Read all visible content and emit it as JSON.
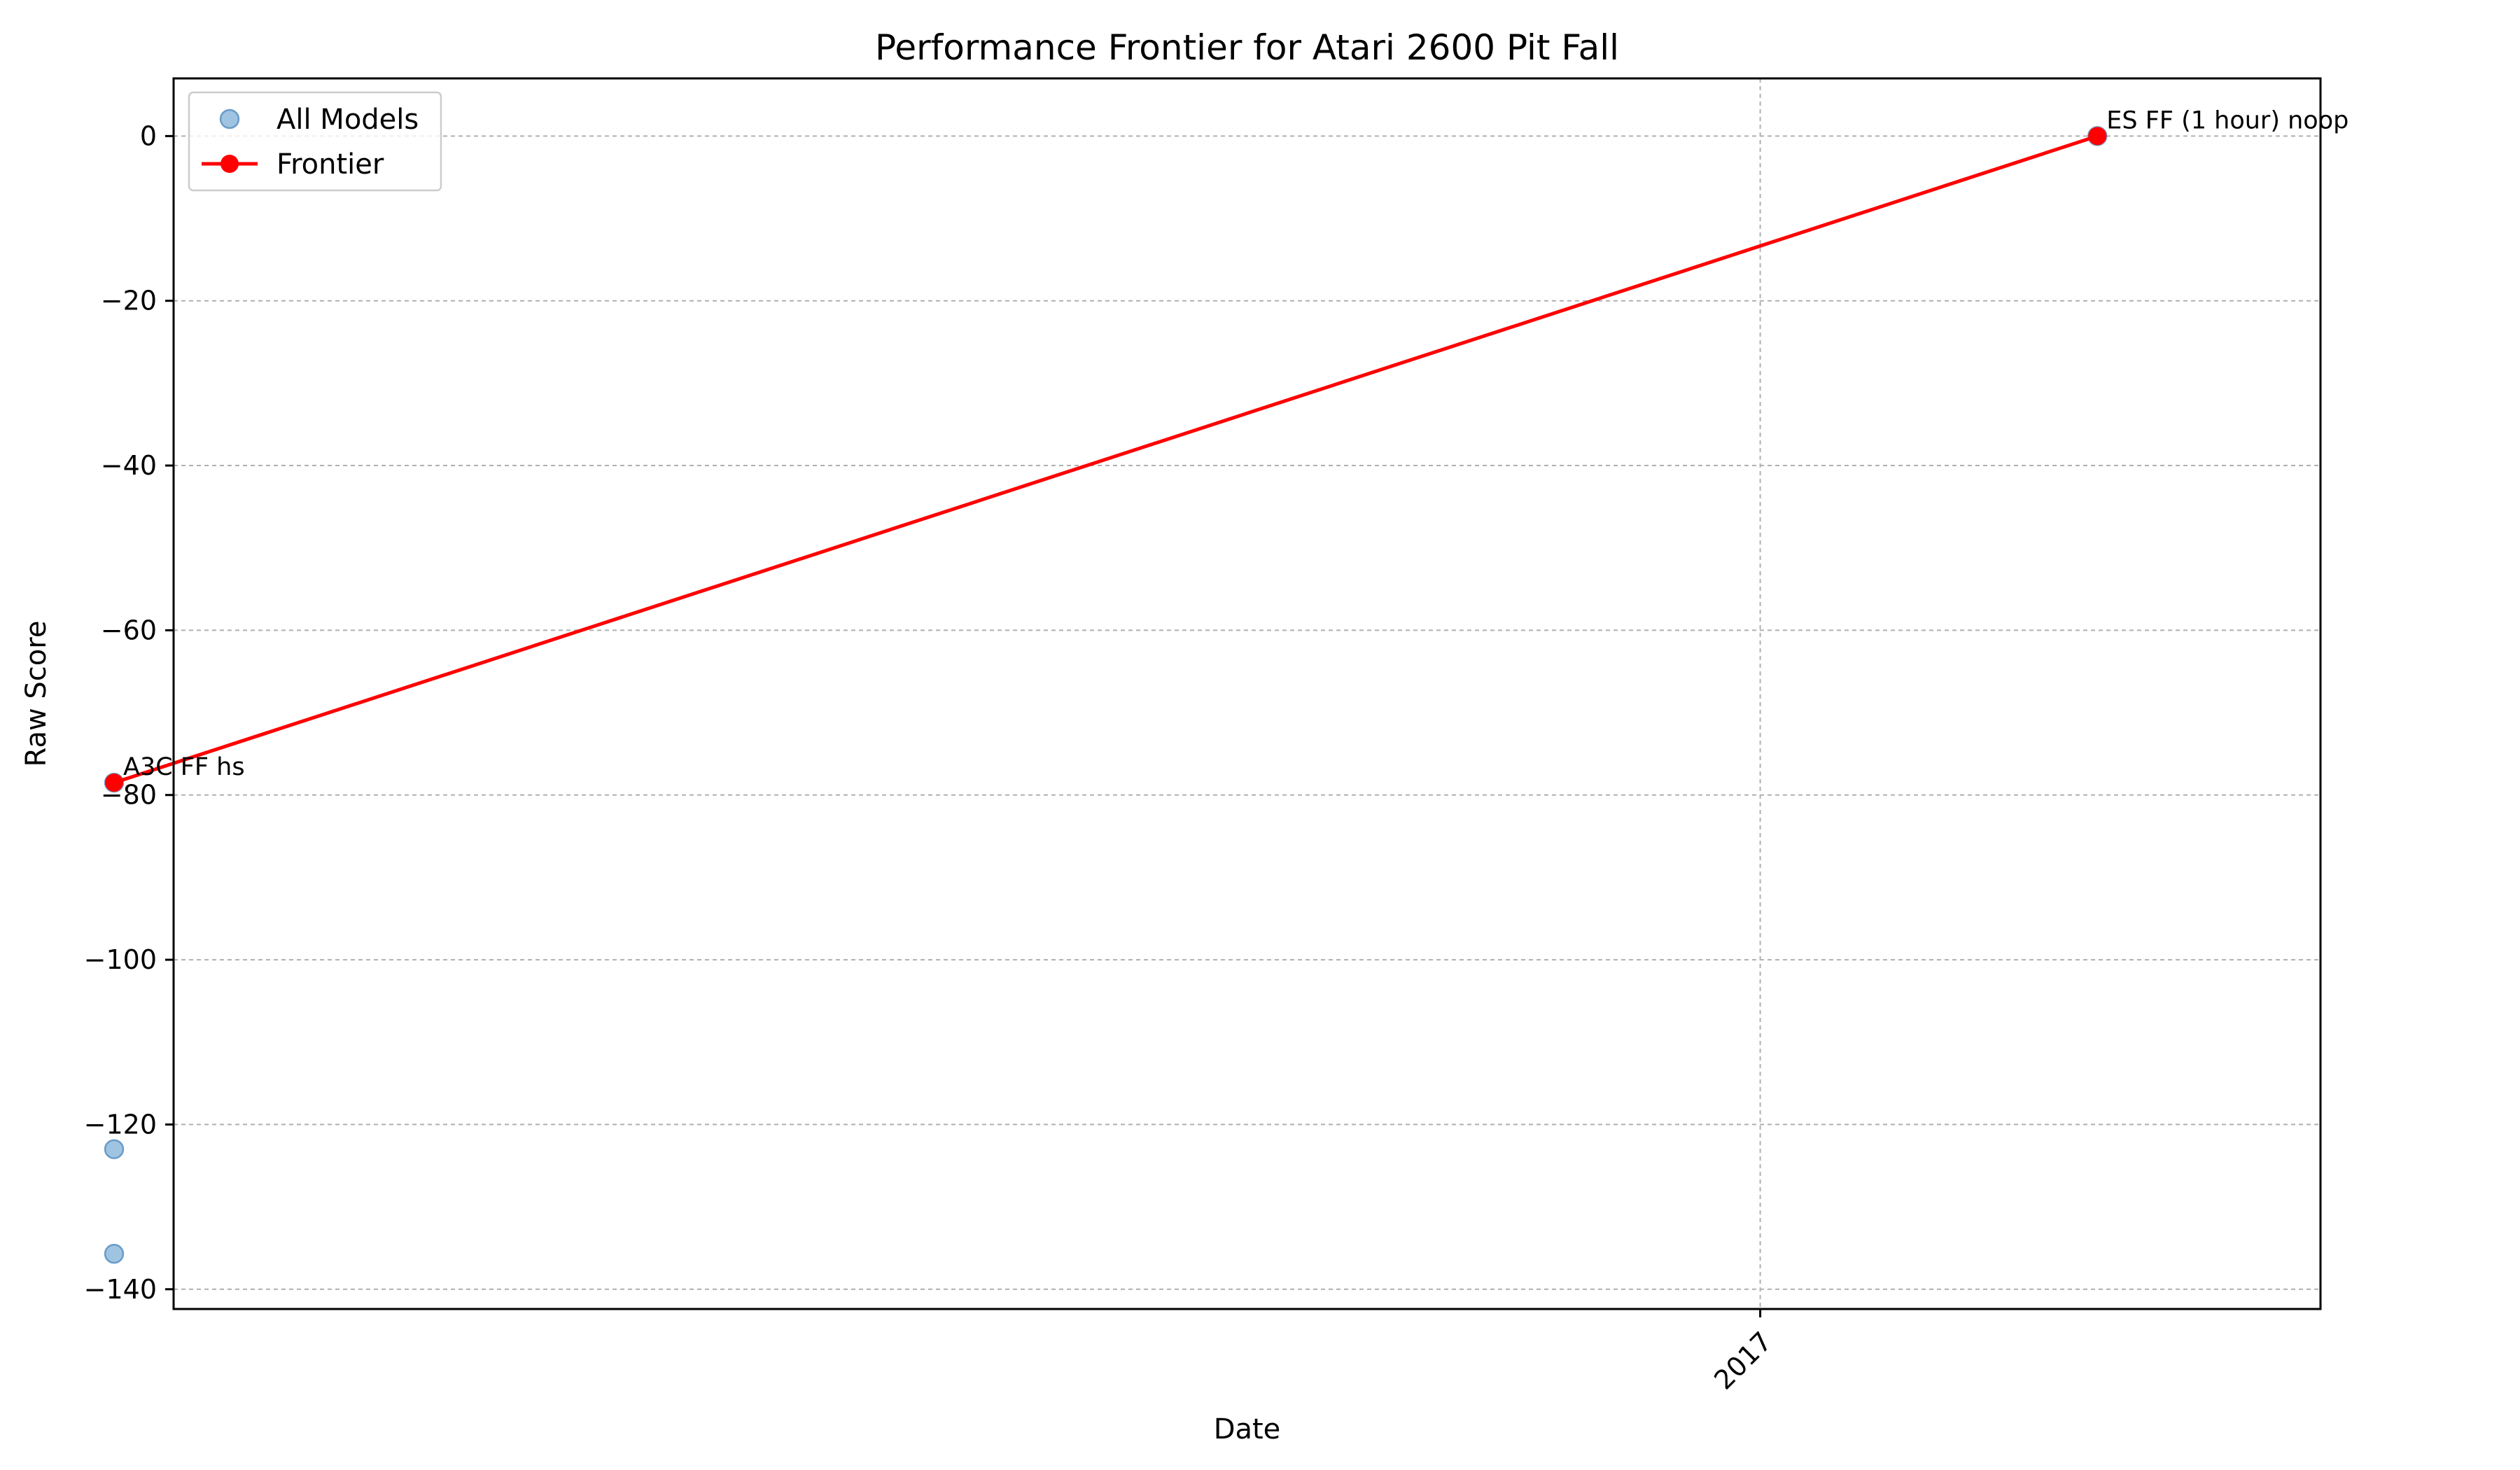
{
  "chart_data": {
    "type": "scatter",
    "title": "Performance Frontier for Atari 2600 Pit Fall",
    "xlabel": "Date",
    "ylabel": "Raw Score",
    "xlim": [
      "2016-02-16",
      "2017-04-24"
    ],
    "ylim": [
      -142.4,
      7.0
    ],
    "x_ticks": [
      {
        "value": "2017-01-01",
        "label": "2017"
      }
    ],
    "y_ticks": [
      0,
      -20,
      -40,
      -60,
      -80,
      -100,
      -120,
      -140
    ],
    "y_tick_labels": [
      "0",
      "−20",
      "−40",
      "−60",
      "−80",
      "−100",
      "−120",
      "−140"
    ],
    "grid": true,
    "legend_position": "top-left",
    "series": [
      {
        "name": "All Models",
        "kind": "scatter",
        "color": "#7fb0d8",
        "points": [
          {
            "x": "2016-02-04",
            "y": -78.5
          },
          {
            "x": "2016-02-04",
            "y": -123.0
          },
          {
            "x": "2016-02-04",
            "y": -135.7
          },
          {
            "x": "2017-03-10",
            "y": 0.0
          }
        ]
      },
      {
        "name": "Frontier",
        "kind": "line",
        "color": "#ff0000",
        "points": [
          {
            "x": "2016-02-04",
            "y": -78.5,
            "label": "A3C FF hs"
          },
          {
            "x": "2017-03-10",
            "y": 0.0,
            "label": "ES FF (1 hour) noop"
          }
        ]
      }
    ]
  }
}
